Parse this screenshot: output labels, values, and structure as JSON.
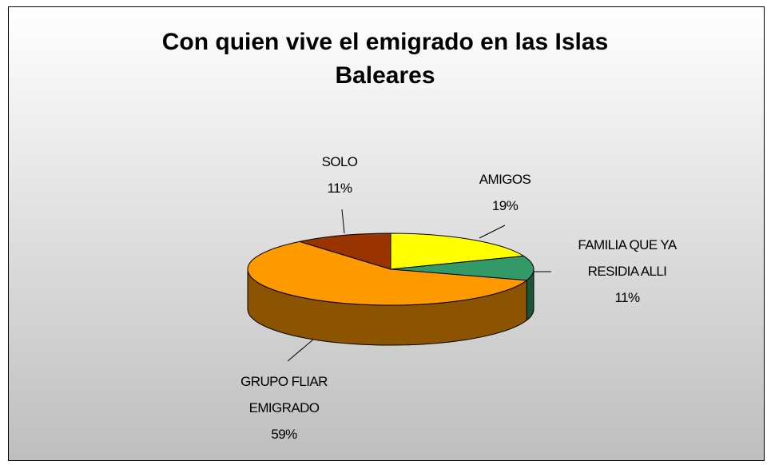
{
  "chart_data": {
    "type": "pie",
    "title": "Con quien vive el emigrado en las Islas Baleares",
    "categories": [
      "AMIGOS",
      "FAMILIA QUE YA RESIDIA ALLI",
      "GRUPO FLIAR EMIGRADO",
      "SOLO"
    ],
    "values": [
      19,
      11,
      59,
      11
    ],
    "value_labels": [
      "19%",
      "11%",
      "59%",
      "11%"
    ],
    "colors": [
      "#ffff00",
      "#339966",
      "#ff9900",
      "#993300"
    ]
  }
}
